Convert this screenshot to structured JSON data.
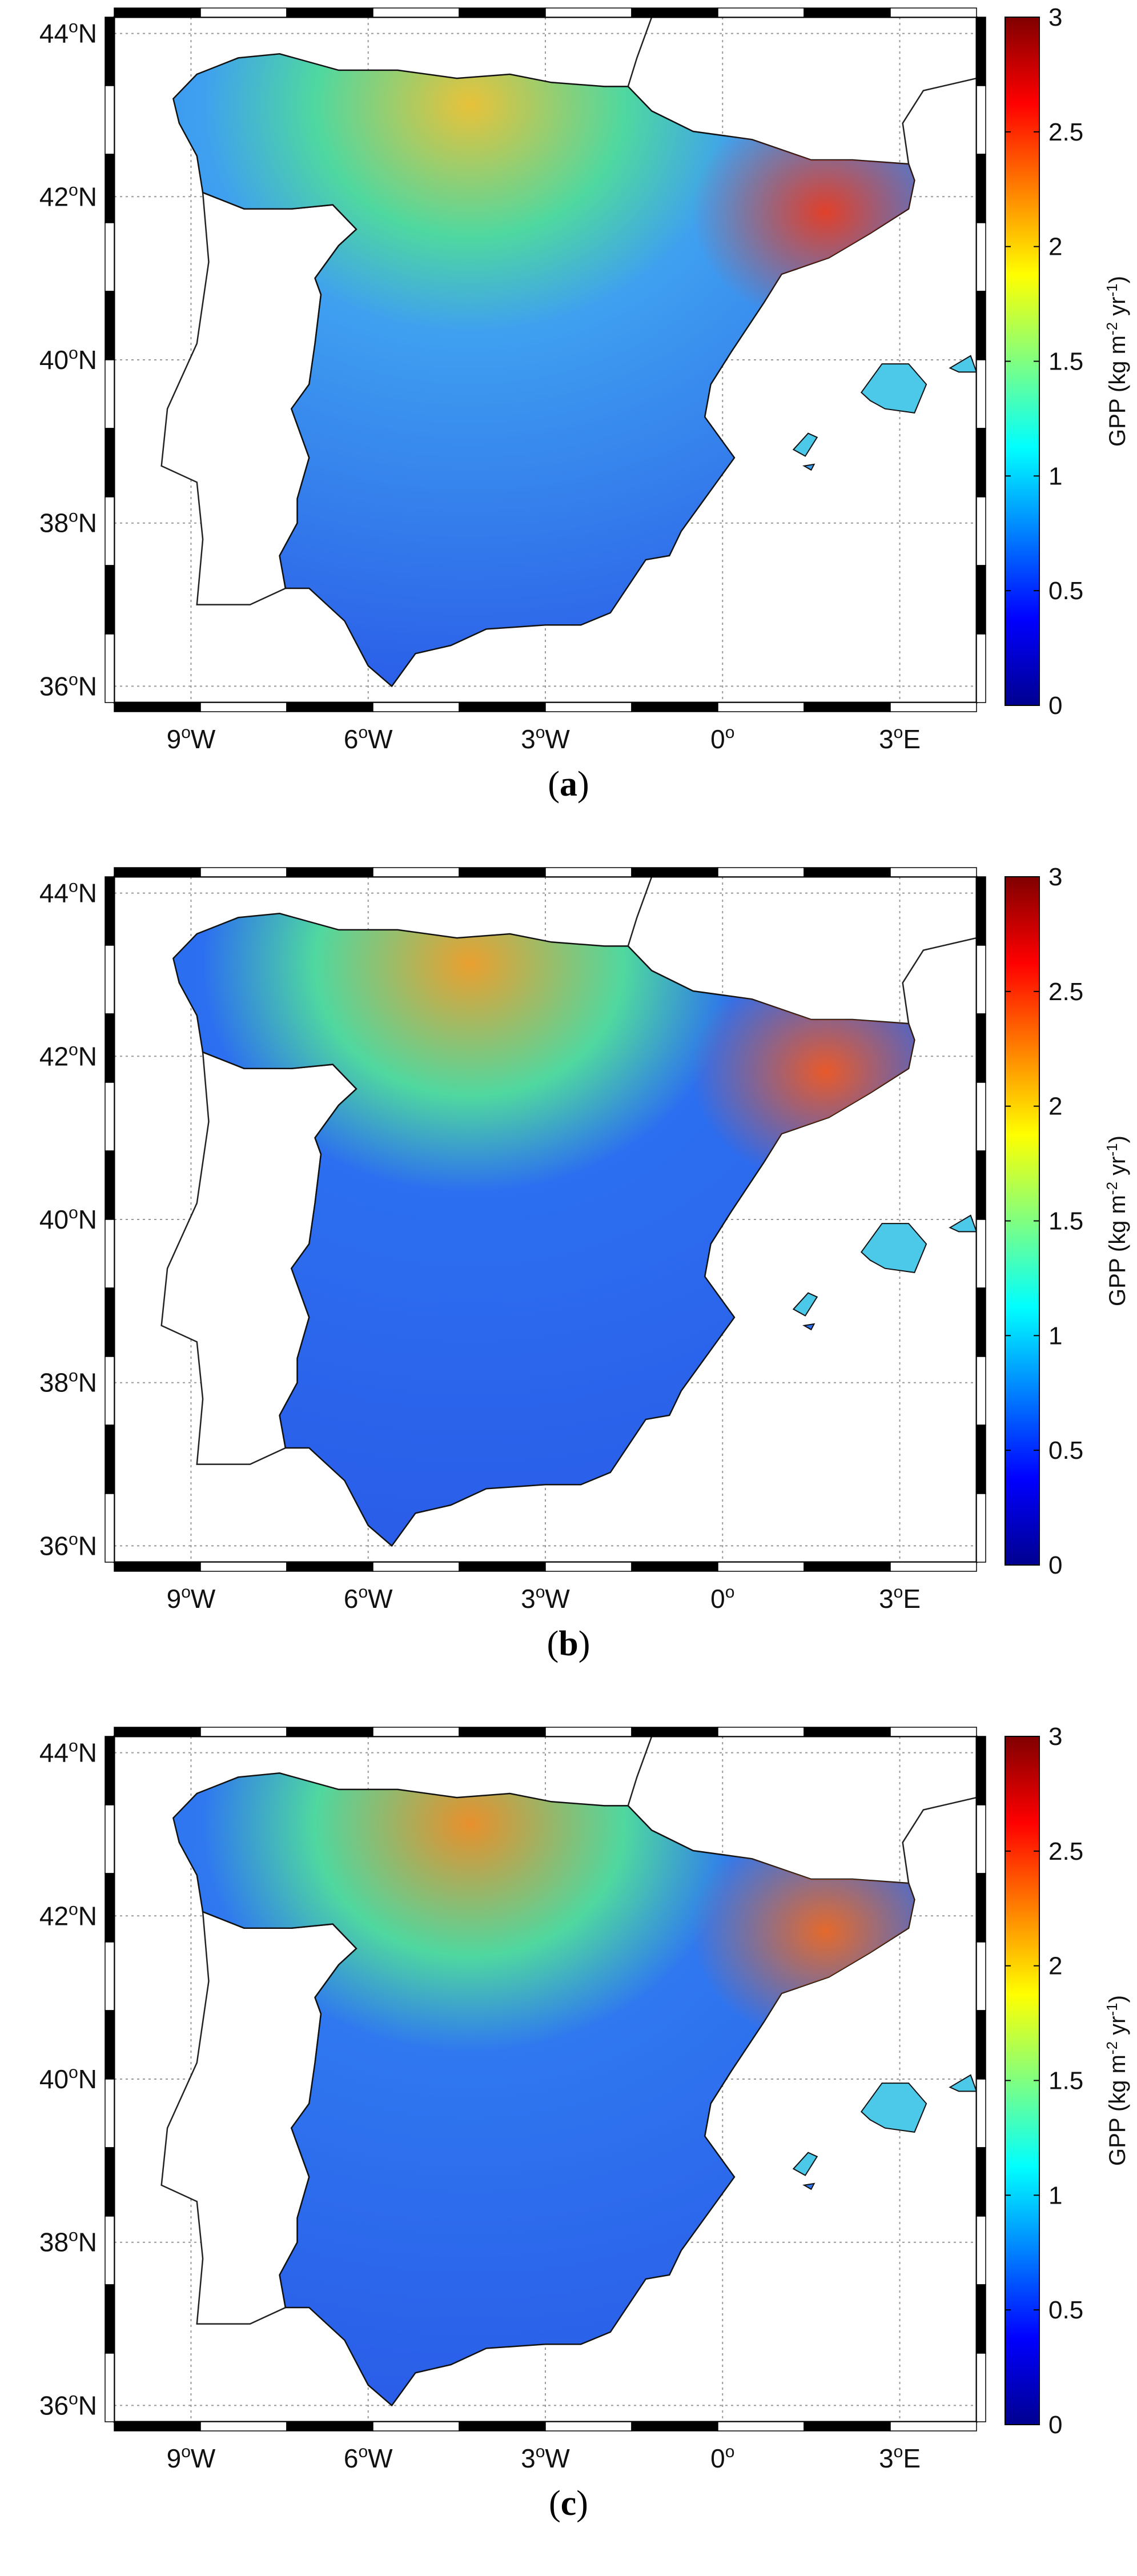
{
  "map": {
    "lat_labels": [
      "44",
      "42",
      "40",
      "38",
      "36"
    ],
    "lat_suffix": "N",
    "lon_labels": [
      {
        "num": "9",
        "suffix": "W"
      },
      {
        "num": "6",
        "suffix": "W"
      },
      {
        "num": "3",
        "suffix": "W"
      },
      {
        "num": "0",
        "suffix": ""
      },
      {
        "num": "3",
        "suffix": "E"
      }
    ],
    "degree_symbol": "o",
    "extent": {
      "lon_min": -10.3,
      "lon_max": 4.3,
      "lat_min": 35.8,
      "lat_max": 44.2
    }
  },
  "colorbar": {
    "ticks": [
      "3",
      "2.5",
      "2",
      "1.5",
      "1",
      "0.5",
      "0"
    ],
    "title_parts": {
      "a": "GPP (kg m",
      "b": "-2",
      "c": " yr",
      "d": "-1",
      "e": ")"
    },
    "range": [
      0,
      3
    ],
    "colors": [
      "#00008f",
      "#0000ff",
      "#0080ff",
      "#00ffff",
      "#80ff80",
      "#ffff00",
      "#ff8000",
      "#ff0000",
      "#800000"
    ]
  },
  "panels": [
    {
      "open": "(",
      "letter": "a",
      "close": ")",
      "north": "#e8c23a",
      "northeast": "#e0402a",
      "interior": "#3fa0f0"
    },
    {
      "open": "(",
      "letter": "b",
      "close": ")",
      "north": "#eaa030",
      "northeast": "#e85a2a",
      "interior": "#2c6ff0"
    },
    {
      "open": "(",
      "letter": "c",
      "close": ")",
      "north": "#e8902c",
      "northeast": "#e46a2c",
      "interior": "#2f78f0"
    }
  ]
}
